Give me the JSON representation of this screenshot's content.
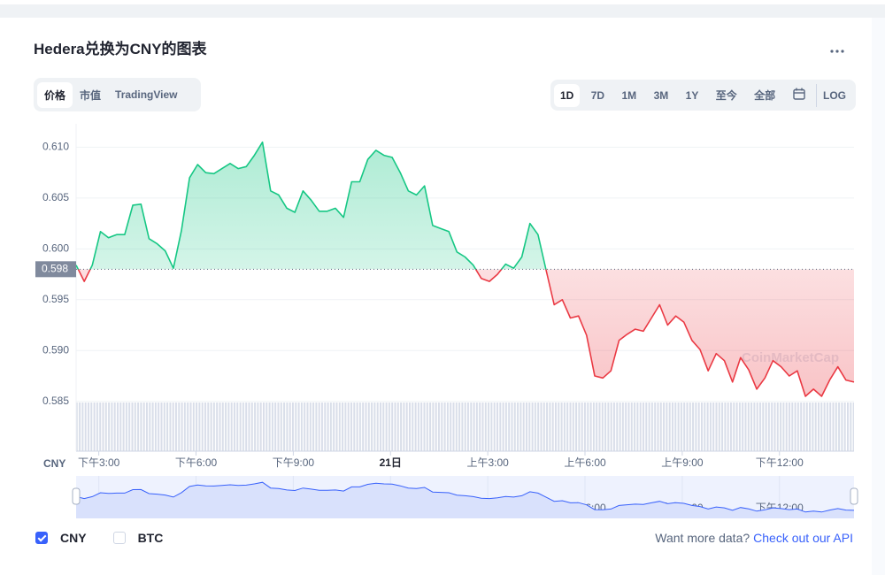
{
  "header": {
    "title": "Hedera兑换为CNY的图表"
  },
  "tabs": [
    "价格",
    "市值",
    "TradingView"
  ],
  "ranges": [
    "1D",
    "7D",
    "1M",
    "3M",
    "1Y",
    "至今",
    "全部"
  ],
  "log": "LOG",
  "chart_data": {
    "type": "line",
    "y_axis_label": "CNY",
    "watermark": "CoinMarketCap",
    "reference_value": 0.598,
    "up_color": "#16c784",
    "down_color": "#ea3943",
    "xlim": [
      0,
      96
    ],
    "xticks": [
      {
        "value": 2.8,
        "label": "下午3:00"
      },
      {
        "value": 14.8,
        "label": "下午6:00"
      },
      {
        "value": 26.8,
        "label": "下午9:00"
      },
      {
        "value": 38.8,
        "label": "21日"
      },
      {
        "value": 50.8,
        "label": "上午3:00"
      },
      {
        "value": 62.8,
        "label": "上午6:00"
      },
      {
        "value": 74.8,
        "label": "上午9:00"
      },
      {
        "value": 86.8,
        "label": "下午12:00"
      }
    ],
    "ylim": [
      0.5801,
      0.6123
    ],
    "yticks": [
      0.585,
      {
        "value": 0.59,
        "label": "0.590"
      },
      0.595,
      {
        "value": 0.6,
        "label": "0.600"
      },
      0.605,
      {
        "value": 0.61,
        "label": "0.610"
      }
    ],
    "grid": true,
    "series": [
      {
        "name": "CNY",
        "values": [
          0.5984,
          0.5968,
          0.5984,
          0.6017,
          0.6011,
          0.6014,
          0.6014,
          0.6043,
          0.6044,
          0.601,
          0.6005,
          0.5998,
          0.5981,
          0.6018,
          0.607,
          0.6083,
          0.6075,
          0.6074,
          0.6079,
          0.6084,
          0.6079,
          0.6081,
          0.6092,
          0.6105,
          0.6057,
          0.6053,
          0.604,
          0.6036,
          0.6057,
          0.6048,
          0.6037,
          0.6037,
          0.604,
          0.6031,
          0.6066,
          0.6066,
          0.6088,
          0.6097,
          0.6092,
          0.609,
          0.6075,
          0.6057,
          0.6053,
          0.6062,
          0.6023,
          0.602,
          0.6017,
          0.5997,
          0.5992,
          0.5984,
          0.5971,
          0.5968,
          0.5975,
          0.5985,
          0.5981,
          0.5992,
          0.6025,
          0.6014,
          0.5979,
          0.5945,
          0.595,
          0.5932,
          0.5934,
          0.5915,
          0.5875,
          0.5873,
          0.588,
          0.591,
          0.5916,
          0.5921,
          0.5919,
          0.5932,
          0.5945,
          0.5925,
          0.5934,
          0.5928,
          0.591,
          0.5901,
          0.588,
          0.5897,
          0.589,
          0.5869,
          0.5893,
          0.5881,
          0.5862,
          0.5873,
          0.589,
          0.5884,
          0.5875,
          0.588,
          0.5855,
          0.5862,
          0.5855,
          0.5871,
          0.5884,
          0.5871,
          0.5869
        ]
      }
    ]
  },
  "legend": [
    {
      "label": "CNY",
      "checked": true
    },
    {
      "label": "BTC",
      "checked": false
    }
  ],
  "footer": {
    "text": "Want more data?",
    "link": "Check out our API"
  }
}
